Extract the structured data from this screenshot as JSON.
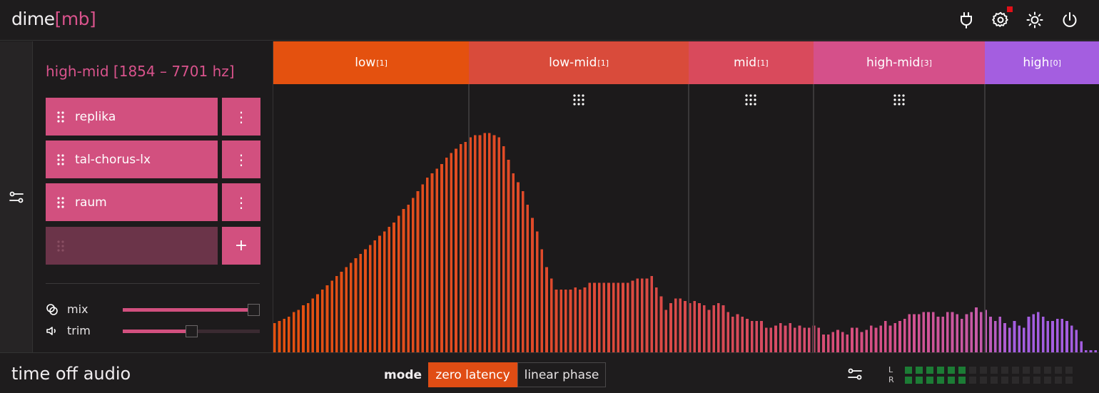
{
  "app": {
    "logo_main": "dime",
    "logo_accent": "[mb]",
    "company": "time off audio"
  },
  "header_icons": [
    "plug-icon",
    "settings-icon",
    "brightness-icon",
    "power-icon"
  ],
  "panel": {
    "band_title": "high-mid [1854 – 7701 hz]",
    "slots": [
      {
        "label": "replika"
      },
      {
        "label": "tal-chorus-lx"
      },
      {
        "label": "raum"
      }
    ],
    "add_label": "+",
    "menu_glyph": "⋮",
    "controls": {
      "mix_label": "mix",
      "mix_value": 1.0,
      "trim_label": "trim",
      "trim_value": 0.5
    }
  },
  "bands": [
    {
      "name": "low",
      "count": "[1]",
      "color": "#e4510f"
    },
    {
      "name": "low-mid",
      "count": "[1]",
      "color": "#d94b3b"
    },
    {
      "name": "mid",
      "count": "[1]",
      "color": "#d94a5c"
    },
    {
      "name": "high-mid",
      "count": "[3]",
      "color": "#d5508a"
    },
    {
      "name": "high",
      "count": "[0]",
      "color": "#a45ee0"
    }
  ],
  "spectrum": {
    "levels": [
      0.13,
      0.14,
      0.15,
      0.16,
      0.18,
      0.19,
      0.21,
      0.22,
      0.24,
      0.26,
      0.28,
      0.3,
      0.32,
      0.34,
      0.36,
      0.38,
      0.4,
      0.42,
      0.44,
      0.46,
      0.48,
      0.5,
      0.52,
      0.54,
      0.56,
      0.58,
      0.61,
      0.64,
      0.66,
      0.69,
      0.72,
      0.75,
      0.78,
      0.8,
      0.82,
      0.84,
      0.87,
      0.89,
      0.91,
      0.93,
      0.94,
      0.96,
      0.97,
      0.97,
      0.98,
      0.98,
      0.97,
      0.96,
      0.92,
      0.86,
      0.8,
      0.76,
      0.72,
      0.66,
      0.6,
      0.54,
      0.46,
      0.38,
      0.33,
      0.28,
      0.28,
      0.28,
      0.28,
      0.29,
      0.28,
      0.29,
      0.31,
      0.31,
      0.31,
      0.31,
      0.31,
      0.31,
      0.31,
      0.31,
      0.31,
      0.32,
      0.33,
      0.33,
      0.33,
      0.34,
      0.29,
      0.25,
      0.19,
      0.22,
      0.24,
      0.24,
      0.23,
      0.22,
      0.23,
      0.22,
      0.21,
      0.19,
      0.21,
      0.22,
      0.21,
      0.18,
      0.16,
      0.17,
      0.16,
      0.15,
      0.14,
      0.14,
      0.14,
      0.11,
      0.11,
      0.12,
      0.13,
      0.12,
      0.13,
      0.11,
      0.12,
      0.11,
      0.11,
      0.12,
      0.11,
      0.08,
      0.08,
      0.09,
      0.1,
      0.09,
      0.08,
      0.11,
      0.11,
      0.09,
      0.1,
      0.12,
      0.11,
      0.12,
      0.14,
      0.12,
      0.13,
      0.14,
      0.15,
      0.17,
      0.17,
      0.17,
      0.18,
      0.18,
      0.18,
      0.16,
      0.16,
      0.18,
      0.18,
      0.17,
      0.15,
      0.17,
      0.18,
      0.2,
      0.18,
      0.19,
      0.16,
      0.14,
      0.16,
      0.13,
      0.11,
      0.14,
      0.12,
      0.11,
      0.16,
      0.17,
      0.18,
      0.16,
      0.14,
      0.14,
      0.15,
      0.15,
      0.14,
      0.12,
      0.1,
      0.05,
      0.01,
      0.01,
      0.01
    ],
    "split_fractions": [
      0.237,
      0.503,
      0.654,
      0.862
    ],
    "grip_icon": "grip-dots-icon"
  },
  "footer": {
    "mode_label": "mode",
    "mode_options": [
      "zero latency",
      "linear phase"
    ],
    "mode_selected": "zero latency",
    "meter_left_label": "L",
    "meter_right_label": "R",
    "meter_left_level": 0.4,
    "meter_right_level": 0.4,
    "meter_cells": 16,
    "meter_on_color": "#1c7c35",
    "meter_off_color": "#2c2a2b"
  }
}
